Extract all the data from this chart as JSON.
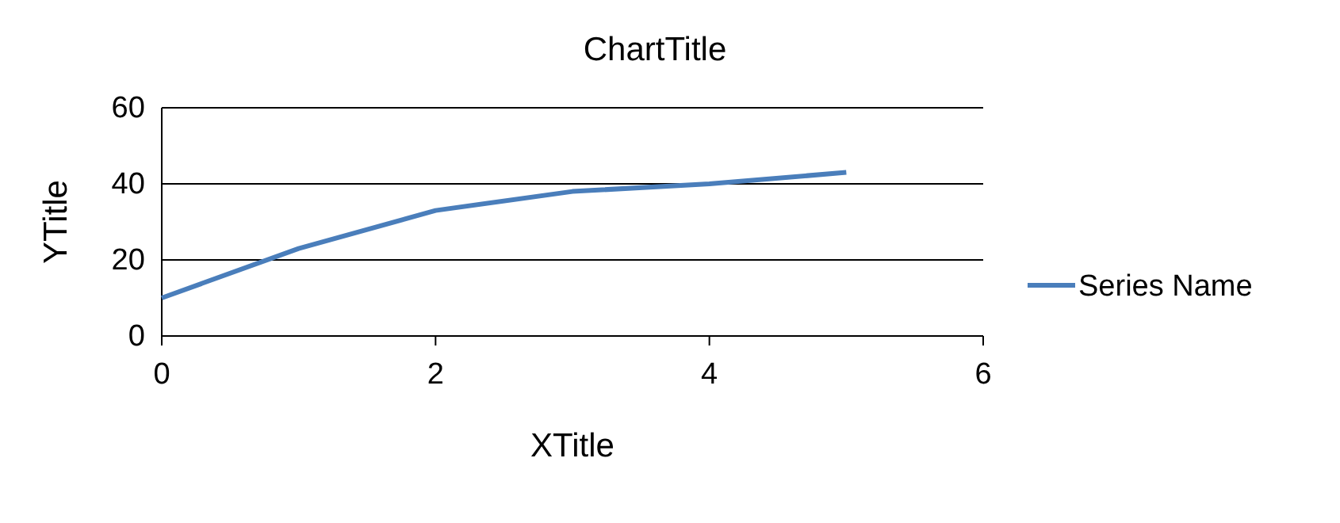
{
  "chart_data": {
    "type": "line",
    "title": "ChartTitle",
    "xlabel": "XTitle",
    "ylabel": "YTitle",
    "x": [
      0,
      1,
      2,
      3,
      4,
      5
    ],
    "series": [
      {
        "name": "Series Name",
        "color": "#4a7ebb",
        "values": [
          10,
          23,
          33,
          38,
          40,
          43
        ]
      }
    ],
    "xlim": [
      0,
      6
    ],
    "xticks": [
      0,
      2,
      4,
      6
    ],
    "ylim": [
      0,
      60
    ],
    "yticks": [
      0,
      20,
      40,
      60
    ],
    "grid": "y",
    "legend": "right",
    "marker": "none",
    "line_style": "solid"
  }
}
